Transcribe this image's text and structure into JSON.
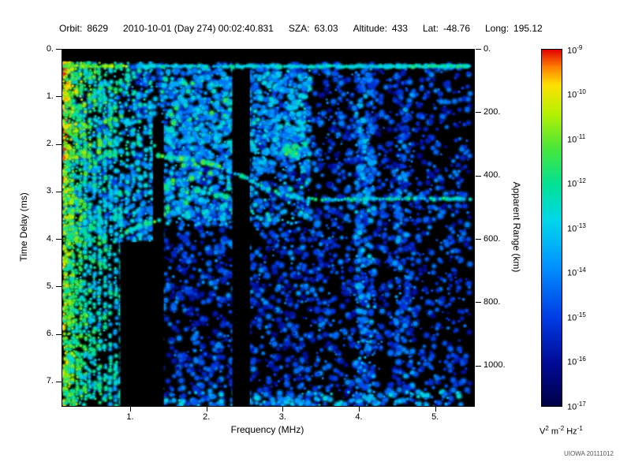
{
  "header": {
    "items": [
      {
        "key": "orbit",
        "label": "Orbit:",
        "value": "8629"
      },
      {
        "key": "datetime",
        "label": "",
        "value": "2010-10-01 (Day 274) 00:02:40.831"
      },
      {
        "key": "sza",
        "label": "SZA:",
        "value": "63.03"
      },
      {
        "key": "altitude",
        "label": "Altitude:",
        "value": "433"
      },
      {
        "key": "latitude",
        "label": "Lat:",
        "value": "-48.76"
      },
      {
        "key": "longitude",
        "label": "Long:",
        "value": "195.12"
      }
    ]
  },
  "watermark": "UIOWA 20111012",
  "colors": {
    "background": "#ffffff",
    "text": "#000000",
    "plot_background": "#000000",
    "watermark": "#555555"
  },
  "chart_data": {
    "type": "heatmap",
    "subtype": "radar-sounder-ionogram-spectrogram",
    "title": "Orbit 8629  2010-10-01 (Day 274) 00:02:40.831  SZA: 63.03  Altitude: 433  Lat: -48.76  Long: 195.12",
    "xlabel": "Frequency (MHz)",
    "ylabel_left": "Time Delay (ms)",
    "ylabel_right": "Apparent Range (km)",
    "x_range": [
      0.1,
      5.5
    ],
    "y_range": [
      0,
      7.5
    ],
    "right_scale_km_per_ms": 150,
    "grid": false,
    "legend_position": "right-colorbar",
    "x_ticks": [
      {
        "v": 1,
        "label": "1."
      },
      {
        "v": 2,
        "label": "2."
      },
      {
        "v": 3,
        "label": "3."
      },
      {
        "v": 4,
        "label": "4."
      },
      {
        "v": 5,
        "label": "5."
      }
    ],
    "y_ticks": [
      {
        "v": 0,
        "label": "0."
      },
      {
        "v": 1,
        "label": "1."
      },
      {
        "v": 2,
        "label": "2."
      },
      {
        "v": 3,
        "label": "3."
      },
      {
        "v": 4,
        "label": "4."
      },
      {
        "v": 5,
        "label": "5."
      },
      {
        "v": 6,
        "label": "6."
      },
      {
        "v": 7,
        "label": "7."
      }
    ],
    "right_ticks": [
      {
        "v": 0,
        "label": "0."
      },
      {
        "v": 200,
        "label": "200."
      },
      {
        "v": 400,
        "label": "400."
      },
      {
        "v": 600,
        "label": "600."
      },
      {
        "v": 800,
        "label": "800."
      },
      {
        "v": 1000,
        "label": "1000."
      }
    ],
    "colorbar": {
      "max_exp": -9,
      "min_exp": -17,
      "ticks": [
        {
          "base": "10",
          "exp": "-9"
        },
        {
          "base": "10",
          "exp": "-10"
        },
        {
          "base": "10",
          "exp": "-11"
        },
        {
          "base": "10",
          "exp": "-12"
        },
        {
          "base": "10",
          "exp": "-13"
        },
        {
          "base": "10",
          "exp": "-14"
        },
        {
          "base": "10",
          "exp": "-15"
        },
        {
          "base": "10",
          "exp": "-16"
        },
        {
          "base": "10",
          "exp": "-17"
        }
      ],
      "unit_segments": [
        {
          "text": "V"
        },
        {
          "text": "2",
          "sup": true
        },
        {
          "text": " m"
        },
        {
          "text": "-2",
          "sup": true
        },
        {
          "text": " Hz"
        },
        {
          "text": "-1",
          "sup": true
        }
      ]
    },
    "render": {
      "seed": 7,
      "background": "#000000",
      "blank_top_ms": 0.24,
      "stripe_top_boost": 0.08,
      "stripe_top_boost_below_ms": 2.3,
      "palette": [
        {
          "p": 0.0,
          "c": [
            0,
            0,
            70
          ]
        },
        {
          "p": 0.12,
          "c": [
            0,
            10,
            150
          ]
        },
        {
          "p": 0.25,
          "c": [
            0,
            60,
            230
          ]
        },
        {
          "p": 0.4,
          "c": [
            0,
            150,
            255
          ]
        },
        {
          "p": 0.52,
          "c": [
            0,
            215,
            235
          ]
        },
        {
          "p": 0.62,
          "c": [
            0,
            225,
            150
          ]
        },
        {
          "p": 0.72,
          "c": [
            70,
            230,
            60
          ]
        },
        {
          "p": 0.82,
          "c": [
            180,
            240,
            0
          ]
        },
        {
          "p": 0.9,
          "c": [
            255,
            225,
            0
          ]
        },
        {
          "p": 0.95,
          "c": [
            255,
            130,
            0
          ]
        },
        {
          "p": 1.0,
          "c": [
            225,
            0,
            0
          ]
        }
      ],
      "speckle": [
        {
          "f": [
            1.35,
            4.25
          ],
          "t": [
            0.3,
            7.5
          ],
          "count": 2400,
          "v": [
            0.1,
            0.4
          ]
        },
        {
          "f": [
            1.4,
            3.35
          ],
          "t": [
            0.35,
            3.7
          ],
          "count": 650,
          "v": [
            0.3,
            0.58
          ]
        },
        {
          "f": [
            4.25,
            5.45
          ],
          "t": [
            0.3,
            7.5
          ],
          "count": 800,
          "v": [
            0.1,
            0.38
          ]
        },
        {
          "f": [
            3.95,
            4.2
          ],
          "t": [
            0.4,
            7.5
          ],
          "count": 320,
          "v": [
            0.18,
            0.5
          ]
        },
        {
          "f": [
            4.45,
            4.7
          ],
          "t": [
            0.4,
            7.5
          ],
          "count": 200,
          "v": [
            0.15,
            0.45
          ]
        },
        {
          "f": [
            0.12,
            1.35
          ],
          "t": [
            0.3,
            4.0
          ],
          "count": 500,
          "v": [
            0.2,
            0.5
          ]
        },
        {
          "f": [
            1.45,
            2.3
          ],
          "t": [
            0.4,
            3.7
          ],
          "count": 350,
          "v": [
            0.3,
            0.55
          ]
        },
        {
          "f": [
            2.6,
            3.35
          ],
          "t": [
            0.4,
            2.6
          ],
          "count": 240,
          "v": [
            0.3,
            0.55
          ]
        },
        {
          "f": [
            1.4,
            5.4
          ],
          "t": [
            7.2,
            7.5
          ],
          "count": 150,
          "v": [
            0.28,
            0.55
          ]
        },
        {
          "f": [
            3.0,
            3.3
          ],
          "t": [
            1.95,
            2.25
          ],
          "count": 25,
          "v": [
            0.55,
            0.75
          ]
        },
        {
          "f": [
            1.4,
            2.3
          ],
          "t": [
            0.5,
            3.5
          ],
          "count": 40,
          "v": [
            0.55,
            0.72
          ]
        }
      ],
      "stripes": [
        {
          "f": 0.13,
          "v": [
            0.6,
            0.92
          ],
          "density": 0.92
        },
        {
          "f": 0.16,
          "v": [
            0.58,
            0.9
          ],
          "density": 0.9
        },
        {
          "f": 0.2,
          "v": [
            0.55,
            0.85
          ],
          "density": 0.88
        },
        {
          "f": 0.24,
          "v": [
            0.5,
            0.82
          ],
          "density": 0.85
        },
        {
          "f": 0.29,
          "v": [
            0.5,
            0.8
          ],
          "density": 0.82
        },
        {
          "f": 0.34,
          "v": [
            0.46,
            0.78
          ],
          "density": 0.8
        },
        {
          "f": 0.4,
          "v": [
            0.45,
            0.75
          ],
          "density": 0.78
        },
        {
          "f": 0.46,
          "v": [
            0.42,
            0.72
          ],
          "density": 0.75
        },
        {
          "f": 0.52,
          "v": [
            0.4,
            0.7
          ],
          "density": 0.72
        },
        {
          "f": 0.59,
          "v": [
            0.4,
            0.7
          ],
          "density": 0.7
        },
        {
          "f": 0.66,
          "v": [
            0.38,
            0.68
          ],
          "density": 0.68
        },
        {
          "f": 0.73,
          "v": [
            0.38,
            0.66
          ],
          "density": 0.65
        },
        {
          "f": 0.8,
          "v": [
            0.36,
            0.64
          ],
          "density": 0.62
        },
        {
          "f": 0.87,
          "v": [
            0.35,
            0.62
          ],
          "density": 0.6
        },
        {
          "f": 0.95,
          "v": [
            0.35,
            0.6
          ],
          "density": 0.58
        },
        {
          "f": 1.03,
          "v": [
            0.34,
            0.58
          ],
          "density": 0.55
        },
        {
          "f": 1.11,
          "v": [
            0.33,
            0.58
          ],
          "density": 0.52
        },
        {
          "f": 1.19,
          "v": [
            0.32,
            0.56
          ],
          "density": 0.5
        },
        {
          "f": 1.26,
          "v": [
            0.32,
            0.55
          ],
          "density": 0.48
        }
      ],
      "dark_bands": [
        {
          "f": [
            2.33,
            2.56
          ],
          "t": [
            0,
            7.6
          ]
        },
        {
          "f": [
            1.29,
            1.43
          ],
          "t": [
            1.55,
            7.6
          ]
        },
        {
          "f": [
            0.86,
            1.29
          ],
          "t": [
            4.05,
            7.6
          ]
        }
      ],
      "top_line": {
        "t": 0.35,
        "density": 0.85,
        "v": [
          0.42,
          0.62
        ],
        "bright_below_f": 0.95,
        "boost": 0.22
      },
      "traces": [
        {
          "points": [
            [
              1.31,
              2.02
            ],
            [
              1.36,
              2.22
            ],
            [
              1.52,
              2.27
            ],
            [
              1.72,
              2.3
            ],
            [
              1.95,
              2.37
            ],
            [
              2.12,
              2.44
            ],
            [
              2.28,
              2.55
            ]
          ],
          "v": [
            0.5,
            0.78
          ],
          "density": 0.85,
          "r": [
            1.6,
            3.0
          ]
        },
        {
          "points": [
            [
              2.28,
              2.55
            ],
            [
              2.45,
              2.65
            ],
            [
              2.6,
              2.78
            ],
            [
              2.75,
              2.9
            ],
            [
              2.9,
              3.0
            ],
            [
              3.05,
              3.08
            ],
            [
              3.2,
              3.13
            ],
            [
              3.6,
              3.16
            ],
            [
              4.1,
              3.14
            ],
            [
              4.6,
              3.13
            ],
            [
              5.1,
              3.14
            ],
            [
              5.45,
              3.15
            ]
          ],
          "v": [
            0.42,
            0.68
          ],
          "density": 0.72,
          "r": [
            1.3,
            2.6
          ]
        },
        {
          "points": [
            [
              0.88,
              3.9
            ],
            [
              1.0,
              3.79
            ],
            [
              1.12,
              3.71
            ],
            [
              1.25,
              3.65
            ],
            [
              1.37,
              3.6
            ]
          ],
          "v": [
            0.5,
            0.75
          ],
          "density": 0.85,
          "r": [
            1.5,
            2.8
          ]
        },
        {
          "points": [
            [
              4.28,
              0.35
            ],
            [
              5.45,
              0.35
            ]
          ],
          "v": [
            0.48,
            0.7
          ],
          "density": 0.9,
          "r": [
            1.2,
            2.2
          ]
        }
      ]
    }
  }
}
